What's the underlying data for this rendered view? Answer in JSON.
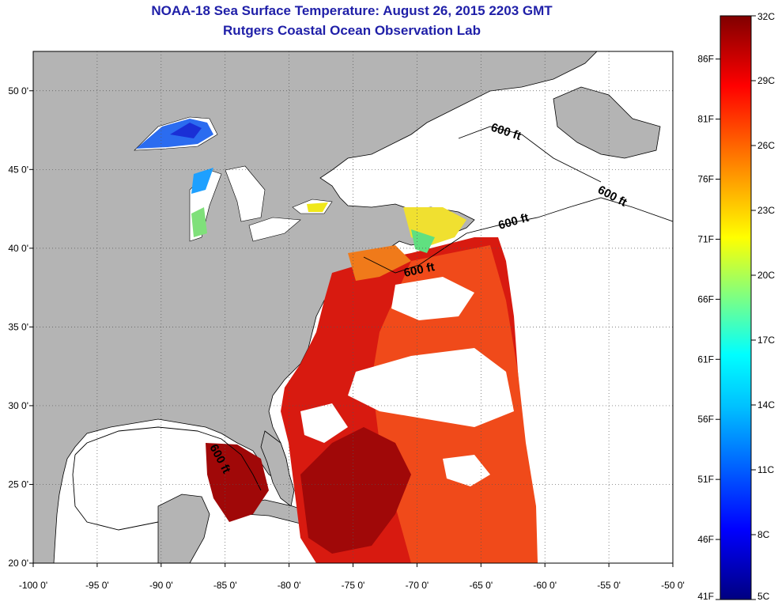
{
  "title": "NOAA-18 Sea Surface Temperature:  August 26, 2015 2203 GMT",
  "subtitle": "Rutgers Coastal Ocean Observation Lab",
  "map": {
    "lon_range": [
      -100,
      -50
    ],
    "lat_range": [
      20,
      52.5
    ],
    "lon_ticks": [
      "-100 0'",
      "-95 0'",
      "-90 0'",
      "-85 0'",
      "-80 0'",
      "-75 0'",
      "-70 0'",
      "-65 0'",
      "-60 0'",
      "-55 0'",
      "-50 0'"
    ],
    "lat_ticks": [
      "20 0'",
      "25 0'",
      "30 0'",
      "35 0'",
      "40 0'",
      "45 0'",
      "50 0'"
    ],
    "grid": "dotted",
    "land_color": "#b4b4b4",
    "no_data_color": "#ffffff",
    "contour_labels": [
      "600 ft",
      "600 ft",
      "600 ft",
      "600 ft",
      "600 ft"
    ]
  },
  "colorbar": {
    "celsius": [
      "32C",
      "29C",
      "26C",
      "23C",
      "20C",
      "17C",
      "14C",
      "11C",
      "8C",
      "5C"
    ],
    "fahrenheit": [
      "86F",
      "81F",
      "76F",
      "71F",
      "66F",
      "61F",
      "56F",
      "51F",
      "46F",
      "41F"
    ],
    "colors": [
      "#000080",
      "#0000ff",
      "#0080ff",
      "#00ffff",
      "#80ff80",
      "#ffff00",
      "#ff8000",
      "#ff0000",
      "#800000"
    ]
  }
}
